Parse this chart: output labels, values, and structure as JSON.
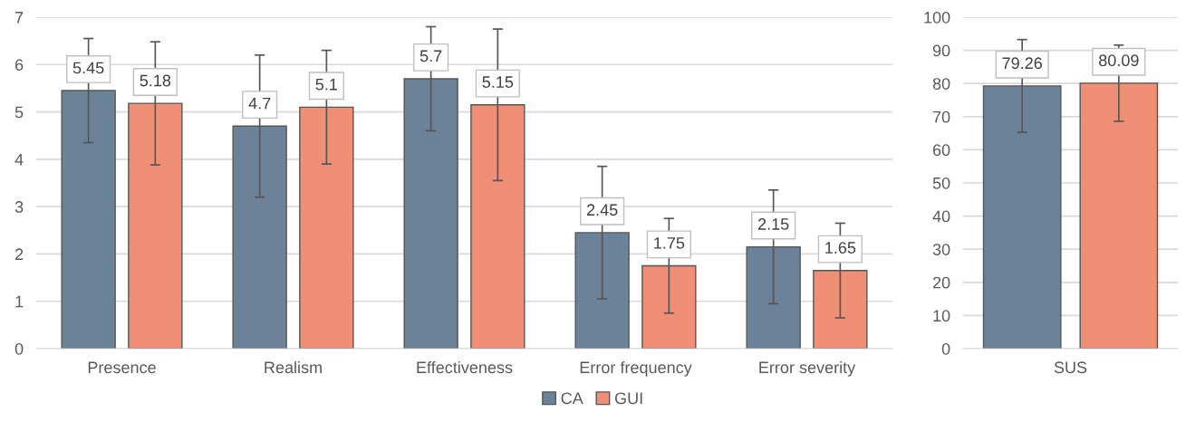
{
  "chart_data": [
    {
      "type": "bar",
      "categories": [
        "Presence",
        "Realism",
        "Effectiveness",
        "Error frequency",
        "Error severity"
      ],
      "series": [
        {
          "name": "CA",
          "color": "#6b8299",
          "values": [
            5.45,
            4.7,
            5.7,
            2.45,
            2.15
          ],
          "errors": [
            1.1,
            1.5,
            1.1,
            1.4,
            1.2
          ]
        },
        {
          "name": "GUI",
          "color": "#ef8f75",
          "values": [
            5.18,
            5.1,
            5.15,
            1.75,
            1.65
          ],
          "errors": [
            1.3,
            1.2,
            1.6,
            1.0,
            1.0
          ]
        }
      ],
      "ylim": [
        0,
        7
      ],
      "yticks": [
        0,
        1,
        2,
        3,
        4,
        5,
        6,
        7
      ],
      "grid": "y",
      "data_labels": true,
      "legend": "bottom"
    },
    {
      "type": "bar",
      "categories": [
        "SUS"
      ],
      "series": [
        {
          "color": "#6b8299",
          "values": [
            79.26
          ],
          "errors": [
            14
          ]
        },
        {
          "color": "#ef8f75",
          "values": [
            80.09
          ],
          "errors": [
            11.5
          ]
        }
      ],
      "ylim": [
        0,
        100
      ],
      "yticks": [
        0,
        10,
        20,
        30,
        40,
        50,
        60,
        70,
        80,
        90,
        100
      ],
      "grid": "y",
      "data_labels": true
    }
  ]
}
